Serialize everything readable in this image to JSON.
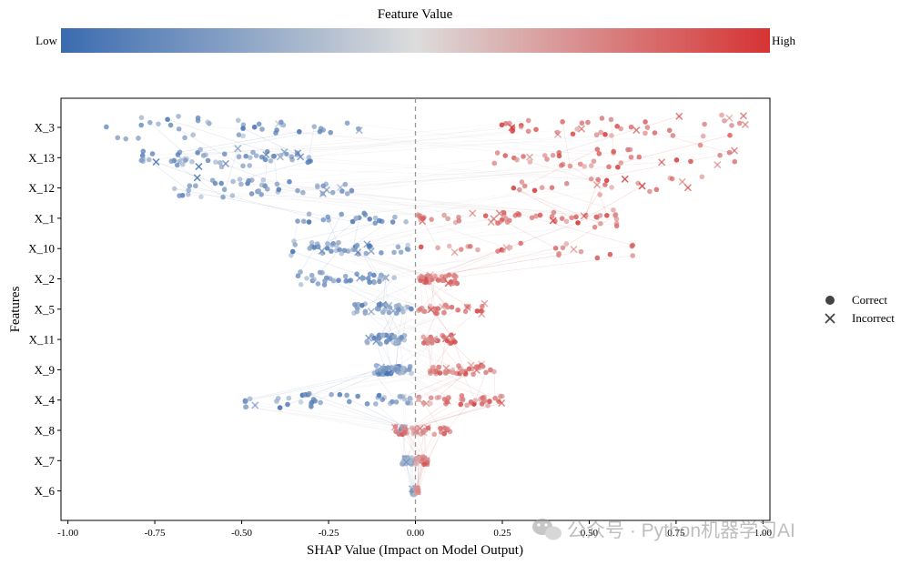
{
  "chart_data": {
    "type": "scatter",
    "subtype": "shap-beeswarm",
    "colorbar": {
      "title": "Feature Value",
      "low_label": "Low",
      "high_label": "High",
      "low_color": "#3a6bb0",
      "mid_color": "#dcdcdc",
      "high_color": "#d63333",
      "placement": "top"
    },
    "xlabel": "SHAP Value (Impact on Model Output)",
    "ylabel": "Features",
    "xlim": [
      -1.02,
      1.02
    ],
    "x_ticks": [
      {
        "value": -1.0,
        "label": "-1.00"
      },
      {
        "value": -0.75,
        "label": "-0.75"
      },
      {
        "value": -0.5,
        "label": "-0.50"
      },
      {
        "value": -0.25,
        "label": "-0.25"
      },
      {
        "value": 0.0,
        "label": "0.00"
      },
      {
        "value": 0.25,
        "label": "0.25"
      },
      {
        "value": 0.5,
        "label": "0.50"
      },
      {
        "value": 0.75,
        "label": "0.75"
      },
      {
        "value": 1.0,
        "label": "1.00"
      }
    ],
    "features": [
      {
        "name": "X_3",
        "neg_range": [
          -0.93,
          -0.14
        ],
        "pos_range": [
          0.24,
          0.95
        ],
        "neg_n": 40,
        "pos_n": 46
      },
      {
        "name": "X_13",
        "neg_range": [
          -0.79,
          -0.3
        ],
        "pos_range": [
          0.17,
          0.93
        ],
        "neg_n": 60,
        "pos_n": 40
      },
      {
        "name": "X_12",
        "neg_range": [
          -0.72,
          -0.18
        ],
        "pos_range": [
          0.22,
          0.85
        ],
        "neg_n": 50,
        "pos_n": 25
      },
      {
        "name": "X_1",
        "neg_range": [
          -0.35,
          -0.02
        ],
        "pos_range": [
          0.0,
          0.58
        ],
        "neg_n": 22,
        "pos_n": 56
      },
      {
        "name": "X_10",
        "neg_range": [
          -0.36,
          -0.02
        ],
        "pos_range": [
          0.01,
          0.66
        ],
        "neg_n": 44,
        "pos_n": 26
      },
      {
        "name": "X_2",
        "neg_range": [
          -0.35,
          -0.05
        ],
        "pos_range": [
          0.01,
          0.12
        ],
        "neg_n": 36,
        "pos_n": 44
      },
      {
        "name": "X_5",
        "neg_range": [
          -0.18,
          -0.01
        ],
        "pos_range": [
          0.0,
          0.2
        ],
        "neg_n": 36,
        "pos_n": 30
      },
      {
        "name": "X_11",
        "neg_range": [
          -0.14,
          -0.03
        ],
        "pos_range": [
          0.02,
          0.12
        ],
        "neg_n": 38,
        "pos_n": 30
      },
      {
        "name": "X_9",
        "neg_range": [
          -0.12,
          -0.01
        ],
        "pos_range": [
          0.04,
          0.23
        ],
        "neg_n": 48,
        "pos_n": 40
      },
      {
        "name": "X_4",
        "neg_range": [
          -0.5,
          -0.01
        ],
        "pos_range": [
          0.0,
          0.25
        ],
        "neg_n": 46,
        "pos_n": 38
      },
      {
        "name": "X_8",
        "neg_range": [
          -0.05,
          -0.01
        ],
        "pos_range": [
          -0.06,
          0.1
        ],
        "neg_n": 6,
        "pos_n": 40
      },
      {
        "name": "X_7",
        "neg_range": [
          -0.04,
          -0.01
        ],
        "pos_range": [
          0.0,
          0.04
        ],
        "neg_n": 30,
        "pos_n": 40
      },
      {
        "name": "X_6",
        "neg_range": [
          -0.01,
          0.0
        ],
        "pos_range": [
          0.0,
          0.01
        ],
        "neg_n": 30,
        "pos_n": 10
      }
    ],
    "legend": {
      "placement": "right",
      "items": [
        {
          "label": "Correct",
          "marker": "circle"
        },
        {
          "label": "Incorrect",
          "marker": "x"
        }
      ]
    },
    "zero_line": true,
    "grid": false
  },
  "watermark": {
    "text": "公众号 · Python机器学习AI",
    "icon": "wechat-icon"
  }
}
